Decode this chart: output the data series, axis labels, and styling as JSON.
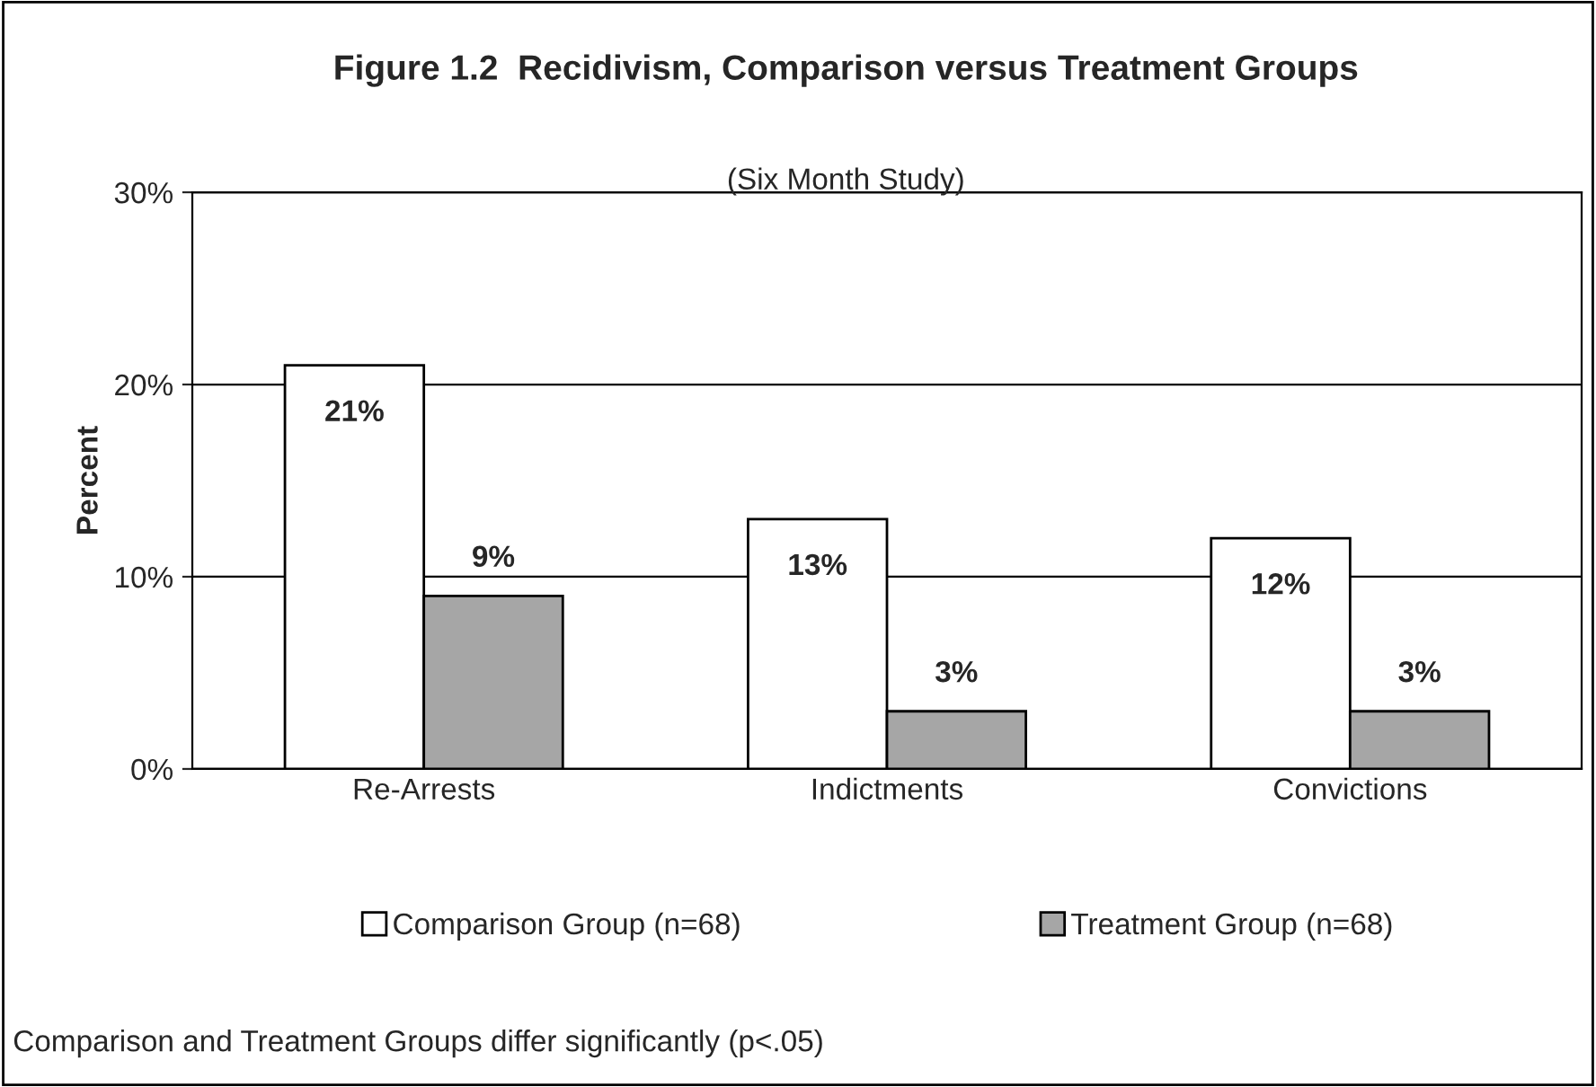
{
  "chart_data": {
    "type": "bar",
    "title": "Figure 1.2  Recidivism, Comparison versus Treatment Groups",
    "subtitle": "(Six Month Study)",
    "ylabel": "Percent",
    "categories": [
      "Re-Arrests",
      "Indictments",
      "Convictions"
    ],
    "series": [
      {
        "name": "Comparison Group (n=68)",
        "color": "#ffffff",
        "values": [
          21,
          13,
          12
        ],
        "value_labels": [
          "21%",
          "13%",
          "12%"
        ]
      },
      {
        "name": "Treatment Group (n=68)",
        "color": "#a6a6a6",
        "values": [
          9,
          3,
          3
        ],
        "value_labels": [
          "9%",
          "3%",
          "3%"
        ]
      }
    ],
    "ylim": [
      0,
      30
    ],
    "yticks": [
      {
        "value": 0,
        "label": "0%"
      },
      {
        "value": 10,
        "label": "10%"
      },
      {
        "value": 20,
        "label": "20%"
      },
      {
        "value": 30,
        "label": "30%"
      }
    ],
    "grid": "y",
    "legend": "bottom",
    "annotations": [
      "Comparison and Treatment Groups differ significantly (p<.05)"
    ]
  }
}
